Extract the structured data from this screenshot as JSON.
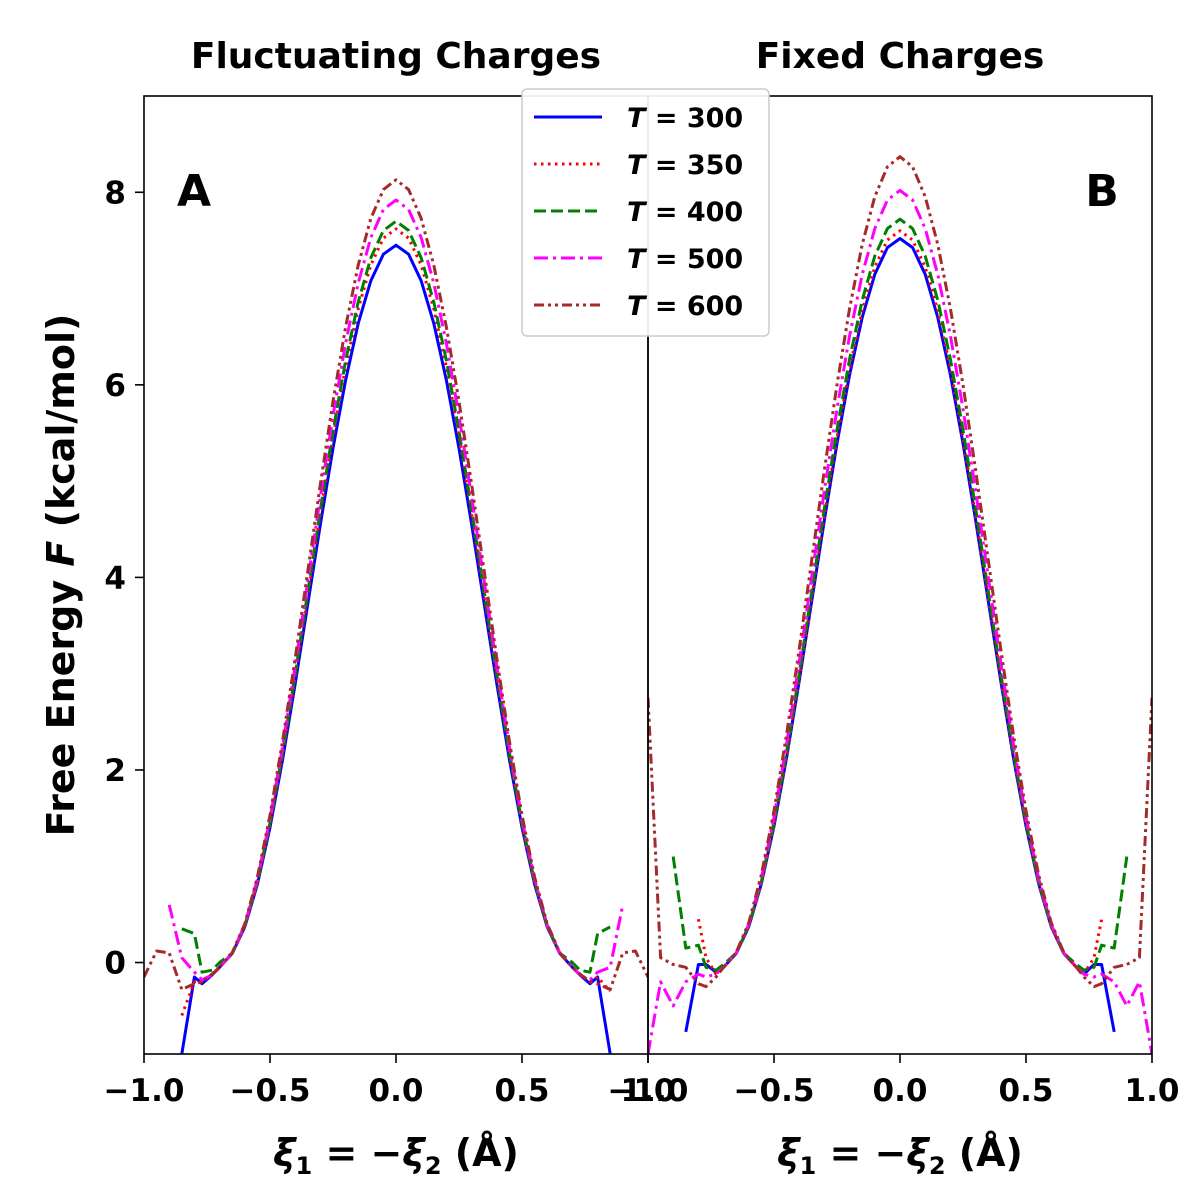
{
  "chart_data": {
    "type": "line",
    "ylabel": "Free Energy F (kcal/mol)",
    "ylabel_parts": {
      "pre": "Free Energy ",
      "var": "F",
      "post": " (kcal/mol)"
    },
    "xlim": [
      -1.0,
      1.0
    ],
    "ylim": [
      -0.95,
      9.0
    ],
    "xtick_values": [
      -1.0,
      -0.5,
      0.0,
      0.5,
      1.0
    ],
    "xtick_labels": [
      "−1.0",
      "−0.5",
      "0.0",
      "0.5",
      "1.0"
    ],
    "ytick_values": [
      0,
      2,
      4,
      6,
      8
    ],
    "ytick_labels": [
      "0",
      "2",
      "4",
      "6",
      "8"
    ],
    "legend": {
      "location": "upper-center",
      "entries": [
        {
          "var": "T",
          "eq": " = ",
          "value": "300",
          "color": "#0000ff",
          "style": "solid"
        },
        {
          "var": "T",
          "eq": " = ",
          "value": "350",
          "color": "#ff0000",
          "style": "dotted"
        },
        {
          "var": "T",
          "eq": " = ",
          "value": "400",
          "color": "#008000",
          "style": "dashed"
        },
        {
          "var": "T",
          "eq": " = ",
          "value": "500",
          "color": "#ff00ff",
          "style": "dashdot"
        },
        {
          "var": "T",
          "eq": " = ",
          "value": "600",
          "color": "#a52a2a",
          "style": "dashdotdot"
        }
      ]
    },
    "panels": [
      {
        "id": "A",
        "title": "Fluctuating Charges",
        "label": "A",
        "xlabel": "ξ1 = −ξ2 (Å)",
        "xlabel_parts": {
          "xi": "ξ",
          "sub1": "1",
          "mid": " = −",
          "sub2": "2",
          "unit": " (Å)"
        },
        "series": [
          {
            "name": "T = 300",
            "peak": 7.45,
            "left_edge": [
              [
                -0.85,
                -0.95
              ],
              [
                -0.8,
                -0.15
              ],
              [
                -0.77,
                -0.22
              ],
              [
                -0.73,
                -0.13
              ],
              [
                -0.7,
                -0.05
              ]
            ],
            "right_edge": [
              [
                0.7,
                -0.05
              ],
              [
                0.73,
                -0.13
              ],
              [
                0.77,
                -0.22
              ],
              [
                0.8,
                -0.15
              ],
              [
                0.85,
                -0.95
              ]
            ]
          },
          {
            "name": "T = 350",
            "peak": 7.62,
            "left_edge": [
              [
                -0.85,
                -0.55
              ],
              [
                -0.8,
                -0.2
              ],
              [
                -0.77,
                -0.2
              ],
              [
                -0.73,
                -0.12
              ],
              [
                -0.7,
                -0.05
              ]
            ],
            "right_edge": [
              [
                0.7,
                -0.05
              ],
              [
                0.73,
                -0.12
              ],
              [
                0.77,
                -0.2
              ],
              [
                0.8,
                -0.15
              ],
              [
                0.85,
                -0.3
              ]
            ]
          },
          {
            "name": "T = 400",
            "peak": 7.7,
            "left_edge": [
              [
                -0.85,
                0.35
              ],
              [
                -0.8,
                0.3
              ],
              [
                -0.77,
                -0.1
              ],
              [
                -0.73,
                -0.08
              ],
              [
                -0.7,
                0.0
              ]
            ],
            "right_edge": [
              [
                0.7,
                0.0
              ],
              [
                0.73,
                -0.08
              ],
              [
                0.77,
                -0.1
              ],
              [
                0.8,
                0.3
              ],
              [
                0.85,
                0.37
              ]
            ]
          },
          {
            "name": "T = 500",
            "peak": 7.92,
            "left_edge": [
              [
                -0.9,
                0.6
              ],
              [
                -0.85,
                0.05
              ],
              [
                -0.8,
                -0.1
              ],
              [
                -0.77,
                -0.18
              ],
              [
                -0.73,
                -0.13
              ],
              [
                -0.7,
                -0.05
              ]
            ],
            "right_edge": [
              [
                0.7,
                -0.05
              ],
              [
                0.73,
                -0.13
              ],
              [
                0.77,
                -0.18
              ],
              [
                0.8,
                -0.1
              ],
              [
                0.85,
                -0.05
              ],
              [
                0.9,
                0.6
              ]
            ]
          },
          {
            "name": "T = 600",
            "peak": 8.13,
            "left_edge": [
              [
                -1.0,
                -0.15
              ],
              [
                -0.95,
                0.12
              ],
              [
                -0.9,
                0.1
              ],
              [
                -0.85,
                -0.28
              ],
              [
                -0.8,
                -0.22
              ],
              [
                -0.77,
                -0.2
              ],
              [
                -0.73,
                -0.12
              ],
              [
                -0.7,
                -0.05
              ]
            ],
            "right_edge": [
              [
                0.7,
                -0.05
              ],
              [
                0.73,
                -0.12
              ],
              [
                0.77,
                -0.2
              ],
              [
                0.8,
                -0.22
              ],
              [
                0.85,
                -0.28
              ],
              [
                0.9,
                0.1
              ],
              [
                0.95,
                0.12
              ],
              [
                1.0,
                -0.15
              ]
            ]
          }
        ]
      },
      {
        "id": "B",
        "title": "Fixed Charges",
        "label": "B",
        "xlabel": "ξ1 = −ξ2 (Å)",
        "xlabel_parts": {
          "xi": "ξ",
          "sub1": "1",
          "mid": " = −",
          "sub2": "2",
          "unit": " (Å)"
        },
        "series": [
          {
            "name": "T = 300",
            "peak": 7.52,
            "left_edge": [
              [
                -0.85,
                -0.72
              ],
              [
                -0.8,
                -0.02
              ],
              [
                -0.77,
                -0.02
              ],
              [
                -0.73,
                -0.1
              ],
              [
                -0.7,
                -0.05
              ]
            ],
            "right_edge": [
              [
                0.7,
                -0.05
              ],
              [
                0.73,
                -0.12
              ],
              [
                0.77,
                -0.02
              ],
              [
                0.8,
                -0.02
              ],
              [
                0.85,
                -0.72
              ]
            ]
          },
          {
            "name": "T = 350",
            "peak": 7.6,
            "left_edge": [
              [
                -0.8,
                0.45
              ],
              [
                -0.77,
                0.05
              ],
              [
                -0.73,
                -0.12
              ],
              [
                -0.7,
                -0.05
              ]
            ],
            "right_edge": [
              [
                0.7,
                -0.05
              ],
              [
                0.73,
                -0.12
              ],
              [
                0.77,
                0.05
              ],
              [
                0.8,
                0.45
              ]
            ]
          },
          {
            "name": "T = 400",
            "peak": 7.72,
            "left_edge": [
              [
                -0.9,
                1.1
              ],
              [
                -0.85,
                0.15
              ],
              [
                -0.8,
                0.18
              ],
              [
                -0.77,
                -0.05
              ],
              [
                -0.73,
                -0.08
              ],
              [
                -0.7,
                -0.02
              ]
            ],
            "right_edge": [
              [
                0.7,
                -0.02
              ],
              [
                0.73,
                -0.08
              ],
              [
                0.77,
                -0.05
              ],
              [
                0.8,
                0.18
              ],
              [
                0.85,
                0.15
              ],
              [
                0.9,
                1.1
              ]
            ]
          },
          {
            "name": "T = 500",
            "peak": 8.02,
            "left_edge": [
              [
                -1.0,
                -0.95
              ],
              [
                -0.95,
                -0.2
              ],
              [
                -0.9,
                -0.45
              ],
              [
                -0.85,
                -0.2
              ],
              [
                -0.8,
                -0.12
              ],
              [
                -0.77,
                -0.15
              ],
              [
                -0.73,
                -0.12
              ],
              [
                -0.7,
                -0.05
              ]
            ],
            "right_edge": [
              [
                0.7,
                -0.05
              ],
              [
                0.73,
                -0.12
              ],
              [
                0.77,
                -0.15
              ],
              [
                0.8,
                -0.12
              ],
              [
                0.85,
                -0.2
              ],
              [
                0.9,
                -0.45
              ],
              [
                0.95,
                -0.2
              ],
              [
                1.0,
                -0.95
              ]
            ]
          },
          {
            "name": "T = 600",
            "peak": 8.37,
            "left_edge": [
              [
                -1.0,
                2.75
              ],
              [
                -0.95,
                0.05
              ],
              [
                -0.9,
                -0.02
              ],
              [
                -0.85,
                -0.05
              ],
              [
                -0.8,
                -0.22
              ],
              [
                -0.77,
                -0.25
              ],
              [
                -0.73,
                -0.15
              ],
              [
                -0.7,
                -0.05
              ]
            ],
            "right_edge": [
              [
                0.7,
                -0.05
              ],
              [
                0.73,
                -0.15
              ],
              [
                0.77,
                -0.25
              ],
              [
                0.8,
                -0.22
              ],
              [
                0.85,
                -0.05
              ],
              [
                0.9,
                -0.02
              ],
              [
                0.95,
                0.05
              ],
              [
                1.0,
                2.75
              ]
            ]
          }
        ]
      }
    ]
  }
}
